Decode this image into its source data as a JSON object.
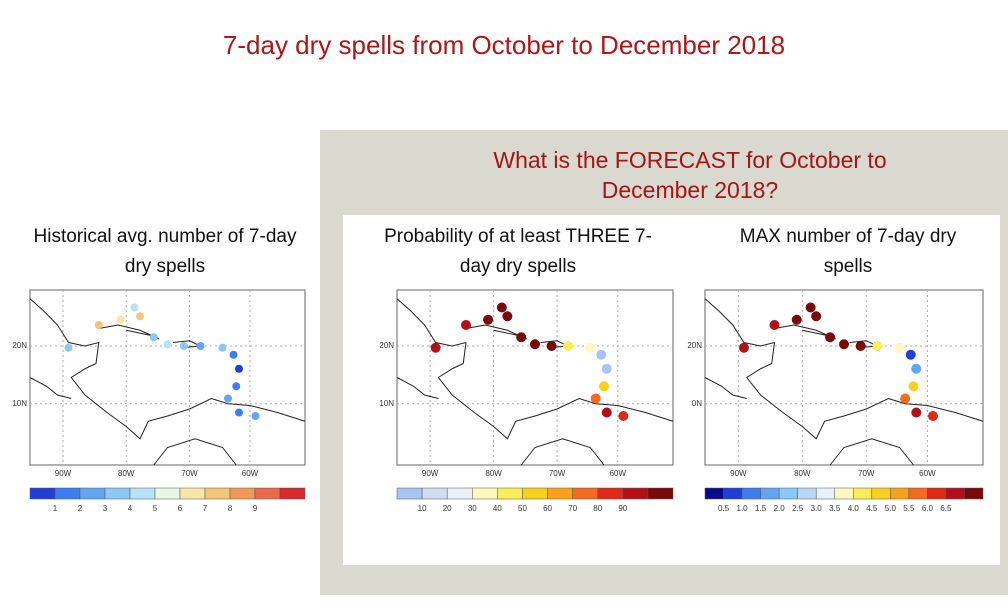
{
  "title": "7-day dry spells from October to December 2018",
  "forecast_heading": "What is the FORECAST for October to December 2018?",
  "panels": [
    {
      "title": "Historical avg. number of 7-day dry spells",
      "lat_labels": [
        "20N",
        "10N"
      ],
      "lon_labels": [
        "90W",
        "80W",
        "70W",
        "60W"
      ],
      "colorbar": {
        "colors": [
          "#1f3fd6",
          "#3c7ef0",
          "#62a6f2",
          "#8cc8f5",
          "#b8e3f7",
          "#e8f6e6",
          "#f7e6a9",
          "#f5c57c",
          "#f09a58",
          "#ea6a4f",
          "#d92b2b"
        ],
        "labels": [
          "1",
          "2",
          "3",
          "4",
          "5",
          "6",
          "7",
          "8",
          "9"
        ]
      }
    },
    {
      "title": "Probability of at least THREE 7-day dry spells",
      "lat_labels": [
        "20N",
        "10N"
      ],
      "lon_labels": [
        "90W",
        "80W",
        "70W",
        "60W"
      ],
      "colorbar": {
        "colors": [
          "#a8c4f0",
          "#d0dcf4",
          "#eaeff9",
          "#fcf8c0",
          "#fdec5a",
          "#fbcf1e",
          "#f7a21a",
          "#f36b1e",
          "#df2a1a",
          "#b3101a",
          "#7a0a0a"
        ],
        "labels": [
          "10",
          "20",
          "30",
          "40",
          "50",
          "60",
          "70",
          "80",
          "90"
        ]
      }
    },
    {
      "title": "MAX number of 7-day dry spells",
      "lat_labels": [
        "20N",
        "0N"
      ],
      "lon_labels": [
        "90W",
        "80W",
        "70W",
        "60W"
      ],
      "colorbar": {
        "colors": [
          "#0a0a8c",
          "#1f3fd6",
          "#3c7ef0",
          "#62a6f2",
          "#8cc8f5",
          "#b8d6f7",
          "#e8f0fa",
          "#fcf8c0",
          "#fdec5a",
          "#fbcf1e",
          "#f7a21a",
          "#f36b1e",
          "#df2a1a",
          "#b3101a",
          "#7a0a0a"
        ],
        "labels": [
          "0.5",
          "1.0",
          "1.5",
          "2.0",
          "2.5",
          "3.0",
          "3.5",
          "4.0",
          "4.5",
          "5.0",
          "5.5",
          "6.0",
          "6.5"
        ]
      }
    }
  ]
}
